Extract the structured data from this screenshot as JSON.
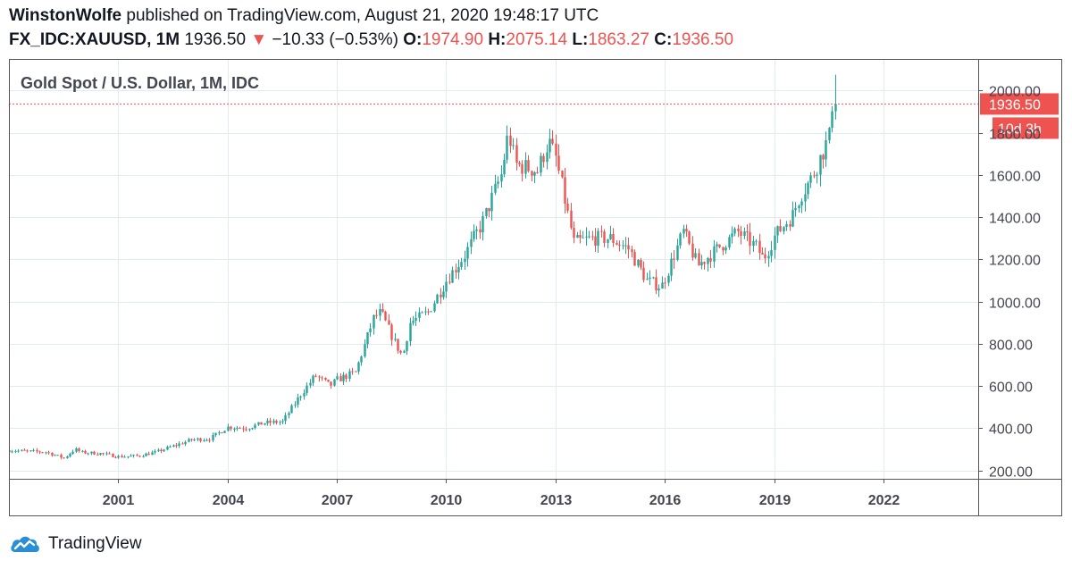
{
  "header": {
    "user": "WinstonWolfe",
    "published": " published on TradingView.com, August 21, 2020 19:48:17 UTC",
    "symbol": "FX_IDC:XAUUSD, 1M",
    "last": "1936.50",
    "arrow": "▼",
    "change": "−10.33 (−0.53%)",
    "o_label": "O:",
    "o": "1974.90",
    "h_label": "H:",
    "h": "2075.14",
    "l_label": "L:",
    "l": "1863.27",
    "c_label": "C:",
    "c": "1936.50"
  },
  "brand": {
    "name": "TradingView",
    "logo_icon": "tradingview-cloud-icon"
  },
  "colors": {
    "up": "#26a69a",
    "down": "#ef5350",
    "grid": "#e1ecf2",
    "border": "#555555",
    "text": "#131722"
  },
  "chart_data": {
    "type": "candlestick",
    "title": "Gold Spot / U.S. Dollar, 1M, IDC",
    "xlabel": "",
    "ylabel": "",
    "x_range": [
      1998.0,
      2024.6
    ],
    "ylim": [
      160,
      2150
    ],
    "y_ticks": [
      200,
      400,
      600,
      800,
      1000,
      1200,
      1400,
      1600,
      1800,
      2000
    ],
    "y_tick_labels": [
      "200.00",
      "400.00",
      "600.00",
      "800.00",
      "1000.00",
      "1200.00",
      "1400.00",
      "1600.00",
      "1800.00",
      "2000.00"
    ],
    "x_ticks": [
      2001,
      2004,
      2007,
      2010,
      2013,
      2016,
      2019,
      2022
    ],
    "x_tick_labels": [
      "2001",
      "2004",
      "2007",
      "2010",
      "2013",
      "2016",
      "2019",
      "2022"
    ],
    "grid": true,
    "last_price": 1936.5,
    "last_price_label": "1936.50",
    "countdown_label": "10d 3h",
    "price_path": [
      [
        1998.0,
        295
      ],
      [
        1998.5,
        290
      ],
      [
        1999.0,
        287
      ],
      [
        1999.5,
        258
      ],
      [
        1999.8,
        300
      ],
      [
        2000.0,
        285
      ],
      [
        2000.5,
        280
      ],
      [
        2001.0,
        265
      ],
      [
        2001.5,
        268
      ],
      [
        2002.0,
        285
      ],
      [
        2002.5,
        315
      ],
      [
        2003.0,
        345
      ],
      [
        2003.5,
        350
      ],
      [
        2004.0,
        405
      ],
      [
        2004.5,
        400
      ],
      [
        2005.0,
        425
      ],
      [
        2005.5,
        430
      ],
      [
        2006.0,
        560
      ],
      [
        2006.4,
        650
      ],
      [
        2006.8,
        600
      ],
      [
        2007.0,
        630
      ],
      [
        2007.5,
        665
      ],
      [
        2008.0,
        920
      ],
      [
        2008.2,
        950
      ],
      [
        2008.6,
        800
      ],
      [
        2008.8,
        740
      ],
      [
        2009.0,
        900
      ],
      [
        2009.5,
        950
      ],
      [
        2010.0,
        1100
      ],
      [
        2010.5,
        1220
      ],
      [
        2011.0,
        1380
      ],
      [
        2011.5,
        1600
      ],
      [
        2011.7,
        1800
      ],
      [
        2011.9,
        1650
      ],
      [
        2012.5,
        1620
      ],
      [
        2012.8,
        1760
      ],
      [
        2013.0,
        1680
      ],
      [
        2013.3,
        1440
      ],
      [
        2013.5,
        1280
      ],
      [
        2014.0,
        1300
      ],
      [
        2014.5,
        1300
      ],
      [
        2015.0,
        1250
      ],
      [
        2015.5,
        1100
      ],
      [
        2015.9,
        1070
      ],
      [
        2016.5,
        1330
      ],
      [
        2016.9,
        1170
      ],
      [
        2017.5,
        1260
      ],
      [
        2018.0,
        1330
      ],
      [
        2018.5,
        1260
      ],
      [
        2018.7,
        1200
      ],
      [
        2019.0,
        1310
      ],
      [
        2019.5,
        1410
      ],
      [
        2019.7,
        1500
      ],
      [
        2020.0,
        1580
      ],
      [
        2020.3,
        1700
      ],
      [
        2020.5,
        1780
      ],
      [
        2020.6,
        1970
      ],
      [
        2020.63,
        1936.5
      ]
    ]
  }
}
